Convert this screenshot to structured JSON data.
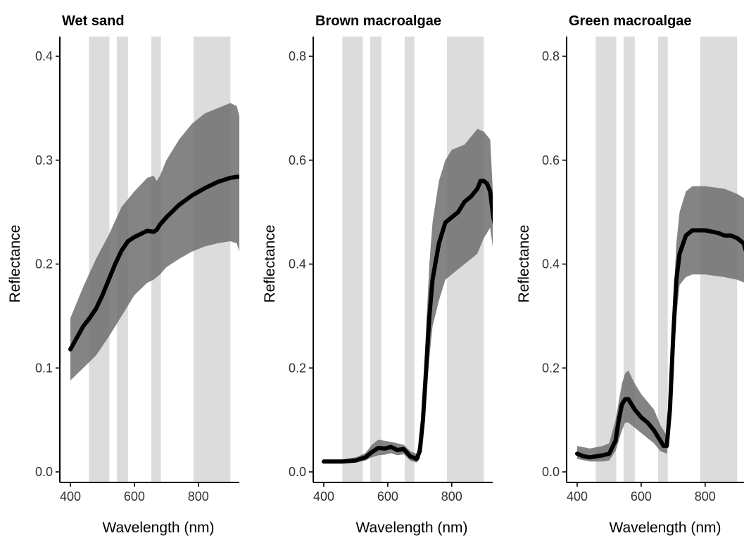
{
  "figure": {
    "xlabel": "Wavelength (nm)",
    "ylabel": "Reflectance"
  },
  "colors": {
    "band": "#dcdcdc",
    "ribbon": "#6e6e6e",
    "mean_line": "#000000"
  },
  "chart_data": [
    {
      "type": "line",
      "title": "Wet sand",
      "xlabel": "Wavelength (nm)",
      "ylabel": "Reflectance",
      "xlim": [
        400,
        950
      ],
      "ylim": [
        0,
        0.42
      ],
      "x_ticks": [
        400,
        600,
        800
      ],
      "y_ticks": [
        0.0,
        0.1,
        0.2,
        0.3,
        0.4
      ],
      "y_tick_labels": [
        "0.0",
        "0.1",
        "0.2",
        "0.3",
        "0.4"
      ],
      "bands": [
        [
          458,
          522
        ],
        [
          545,
          580
        ],
        [
          653,
          683
        ],
        [
          785,
          900
        ]
      ],
      "series": [
        {
          "label": "mean",
          "x": [
            400,
            440,
            460,
            480,
            500,
            520,
            540,
            560,
            580,
            600,
            620,
            640,
            660,
            670,
            680,
            700,
            740,
            780,
            820,
            860,
            900,
            920,
            935,
            940,
            945,
            950
          ],
          "y": [
            0.118,
            0.14,
            0.148,
            0.157,
            0.17,
            0.185,
            0.2,
            0.213,
            0.222,
            0.226,
            0.229,
            0.232,
            0.231,
            0.233,
            0.238,
            0.245,
            0.257,
            0.266,
            0.273,
            0.279,
            0.283,
            0.284,
            0.284,
            0.278,
            0.281,
            0.279
          ]
        },
        {
          "label": "upper",
          "x": [
            400,
            440,
            480,
            520,
            560,
            600,
            640,
            660,
            670,
            680,
            700,
            740,
            780,
            820,
            860,
            900,
            920,
            930,
            935,
            940,
            950
          ],
          "y": [
            0.148,
            0.178,
            0.205,
            0.228,
            0.255,
            0.27,
            0.283,
            0.285,
            0.28,
            0.285,
            0.3,
            0.32,
            0.335,
            0.345,
            0.35,
            0.355,
            0.352,
            0.34,
            0.35,
            0.345,
            0.348
          ]
        },
        {
          "label": "lower",
          "x": [
            400,
            440,
            480,
            520,
            560,
            600,
            640,
            660,
            680,
            700,
            740,
            780,
            820,
            860,
            900,
            920,
            930,
            935,
            950
          ],
          "y": [
            0.088,
            0.1,
            0.112,
            0.13,
            0.15,
            0.17,
            0.182,
            0.185,
            0.19,
            0.197,
            0.205,
            0.212,
            0.217,
            0.22,
            0.222,
            0.22,
            0.21,
            0.215,
            0.212
          ]
        }
      ]
    },
    {
      "type": "line",
      "title": "Brown macroalgae",
      "xlabel": "Wavelength (nm)",
      "ylabel": "Reflectance",
      "xlim": [
        400,
        950
      ],
      "ylim": [
        0,
        0.84
      ],
      "x_ticks": [
        400,
        600,
        800
      ],
      "y_ticks": [
        0.0,
        0.2,
        0.4,
        0.6,
        0.8
      ],
      "y_tick_labels": [
        "0.0",
        "0.2",
        "0.4",
        "0.6",
        "0.8"
      ],
      "bands": [
        [
          458,
          522
        ],
        [
          545,
          580
        ],
        [
          653,
          683
        ],
        [
          785,
          900
        ]
      ],
      "series": [
        {
          "label": "mean",
          "x": [
            400,
            460,
            500,
            530,
            550,
            570,
            590,
            610,
            630,
            650,
            670,
            690,
            700,
            710,
            720,
            730,
            740,
            760,
            780,
            800,
            820,
            840,
            860,
            880,
            890,
            900,
            910,
            920,
            930,
            940,
            950
          ],
          "y": [
            0.02,
            0.02,
            0.022,
            0.028,
            0.038,
            0.046,
            0.045,
            0.048,
            0.042,
            0.044,
            0.03,
            0.025,
            0.04,
            0.1,
            0.2,
            0.3,
            0.37,
            0.44,
            0.48,
            0.49,
            0.5,
            0.52,
            0.53,
            0.545,
            0.56,
            0.56,
            0.555,
            0.54,
            0.49,
            0.46,
            0.43
          ]
        },
        {
          "label": "upper",
          "x": [
            400,
            460,
            500,
            530,
            550,
            570,
            590,
            610,
            630,
            650,
            670,
            690,
            700,
            710,
            720,
            730,
            740,
            760,
            780,
            800,
            840,
            880,
            900,
            920,
            930,
            935,
            950
          ],
          "y": [
            0.022,
            0.024,
            0.028,
            0.036,
            0.052,
            0.062,
            0.06,
            0.058,
            0.055,
            0.052,
            0.04,
            0.035,
            0.06,
            0.15,
            0.28,
            0.4,
            0.48,
            0.56,
            0.6,
            0.62,
            0.63,
            0.66,
            0.655,
            0.64,
            0.52,
            0.54,
            0.53
          ]
        },
        {
          "label": "lower",
          "x": [
            400,
            460,
            500,
            530,
            550,
            570,
            590,
            610,
            630,
            650,
            670,
            690,
            700,
            710,
            720,
            730,
            740,
            760,
            780,
            800,
            840,
            880,
            900,
            920,
            935,
            950
          ],
          "y": [
            0.018,
            0.018,
            0.018,
            0.022,
            0.028,
            0.032,
            0.033,
            0.036,
            0.032,
            0.034,
            0.022,
            0.018,
            0.025,
            0.06,
            0.14,
            0.22,
            0.28,
            0.33,
            0.37,
            0.38,
            0.4,
            0.42,
            0.45,
            0.47,
            0.4,
            0.36
          ]
        }
      ]
    },
    {
      "type": "line",
      "title": "Green macroalgae",
      "xlabel": "Wavelength (nm)",
      "ylabel": "Reflectance",
      "xlim": [
        400,
        950
      ],
      "ylim": [
        0,
        0.84
      ],
      "x_ticks": [
        400,
        600,
        800
      ],
      "y_ticks": [
        0.0,
        0.2,
        0.4,
        0.6,
        0.8
      ],
      "y_tick_labels": [
        "0.0",
        "0.2",
        "0.4",
        "0.6",
        "0.8"
      ],
      "bands": [
        [
          458,
          522
        ],
        [
          545,
          580
        ],
        [
          653,
          683
        ],
        [
          785,
          900
        ]
      ],
      "series": [
        {
          "label": "mean",
          "x": [
            400,
            420,
            440,
            460,
            480,
            500,
            520,
            530,
            540,
            550,
            560,
            570,
            580,
            600,
            620,
            640,
            660,
            670,
            680,
            690,
            700,
            710,
            720,
            740,
            760,
            800,
            840,
            860,
            880,
            900,
            920,
            940,
            950
          ],
          "y": [
            0.035,
            0.03,
            0.028,
            0.03,
            0.032,
            0.035,
            0.06,
            0.1,
            0.13,
            0.14,
            0.14,
            0.13,
            0.12,
            0.105,
            0.095,
            0.08,
            0.06,
            0.05,
            0.05,
            0.12,
            0.26,
            0.37,
            0.42,
            0.455,
            0.465,
            0.465,
            0.46,
            0.455,
            0.455,
            0.45,
            0.44,
            0.4,
            0.38
          ]
        },
        {
          "label": "upper",
          "x": [
            400,
            440,
            480,
            500,
            520,
            540,
            550,
            560,
            580,
            600,
            640,
            660,
            680,
            690,
            700,
            710,
            720,
            740,
            760,
            800,
            860,
            900,
            940,
            950
          ],
          "y": [
            0.05,
            0.045,
            0.05,
            0.055,
            0.1,
            0.17,
            0.19,
            0.195,
            0.17,
            0.15,
            0.12,
            0.09,
            0.07,
            0.16,
            0.32,
            0.44,
            0.5,
            0.54,
            0.55,
            0.55,
            0.545,
            0.535,
            0.52,
            0.5
          ]
        },
        {
          "label": "lower",
          "x": [
            400,
            440,
            480,
            500,
            520,
            540,
            550,
            560,
            580,
            600,
            640,
            660,
            680,
            690,
            700,
            710,
            720,
            740,
            760,
            800,
            860,
            900,
            940,
            950
          ],
          "y": [
            0.025,
            0.02,
            0.02,
            0.022,
            0.04,
            0.08,
            0.095,
            0.095,
            0.085,
            0.075,
            0.055,
            0.04,
            0.035,
            0.08,
            0.18,
            0.3,
            0.36,
            0.375,
            0.38,
            0.38,
            0.375,
            0.37,
            0.36,
            0.28
          ]
        }
      ]
    }
  ]
}
